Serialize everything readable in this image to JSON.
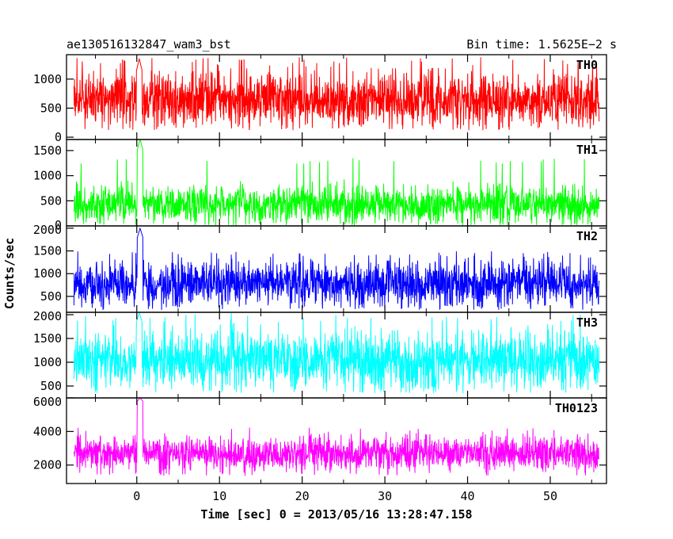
{
  "header": {
    "title": "ae130516132847_wam3_bst",
    "bin_time": "Bin time: 1.5625E−2 s"
  },
  "ylabel": "Counts/sec",
  "xlabel": "Time [sec] 0 = 2013/05/16 13:28:47.158",
  "colors": {
    "TH0": "#ff0000",
    "TH1": "#00ff00",
    "TH2": "#0000ff",
    "TH3": "#00ffff",
    "TH0123": "#ff00ff",
    "axes": "#000000"
  },
  "chart_data": {
    "type": "line",
    "title": "ae130516132847_wam3_bst",
    "subtitle": "Bin time: 1.5625E−2 s",
    "xlabel": "Time [sec] 0 = 2013/05/16 13:28:47.158",
    "ylabel": "Counts/sec",
    "xlim": [
      -8.5,
      56.8
    ],
    "data_x_range": [
      -7.6,
      55.9
    ],
    "bin_time_s": 0.015625,
    "x_ticks": [
      0,
      10,
      20,
      30,
      40,
      50
    ],
    "x_tick_labels": [
      "0",
      "10",
      "20",
      "30",
      "40",
      "50"
    ],
    "grid": false,
    "legend": "none",
    "panels": [
      {
        "name": "TH0",
        "color": "#ff0000",
        "ylim": [
          -40,
          1420
        ],
        "y_ticks": [
          0,
          500,
          1000
        ],
        "y_tick_labels": [
          "0",
          "500",
          "1000"
        ],
        "baseline_mean": 640,
        "baseline_spread": 230,
        "min_typical": 120,
        "max_typical": 1380,
        "burst": {
          "t": 0.3,
          "peak": 1350
        }
      },
      {
        "name": "TH1",
        "color": "#00ff00",
        "ylim": [
          0,
          1720
        ],
        "y_ticks": [
          0,
          500,
          1000,
          1500
        ],
        "y_tick_labels": [
          "0",
          "500",
          "1000",
          "1500"
        ],
        "baseline_mean": 430,
        "baseline_spread": 190,
        "min_typical": 10,
        "max_typical": 1350,
        "burst": {
          "t": 0.4,
          "peak": 1720
        }
      },
      {
        "name": "TH2",
        "color": "#0000ff",
        "ylim": [
          150,
          2050
        ],
        "y_ticks": [
          500,
          1000,
          1500,
          2000
        ],
        "y_tick_labels": [
          "500",
          "1000",
          "1500",
          "2000"
        ],
        "baseline_mean": 780,
        "baseline_spread": 240,
        "min_typical": 200,
        "max_typical": 1500,
        "burst": {
          "t": 0.4,
          "peak": 2000
        }
      },
      {
        "name": "TH3",
        "color": "#00ffff",
        "ylim": [
          250,
          2050
        ],
        "y_ticks": [
          500,
          1000,
          1500,
          2000
        ],
        "y_tick_labels": [
          "500",
          "1000",
          "1500",
          "2000"
        ],
        "baseline_mean": 1050,
        "baseline_spread": 300,
        "min_typical": 350,
        "max_typical": 2050,
        "burst": {
          "t": 0.3,
          "peak": 2050
        }
      },
      {
        "name": "TH0123",
        "color": "#ff00ff",
        "ylim": [
          900,
          6000
        ],
        "y_ticks": [
          2000,
          4000,
          6000
        ],
        "y_tick_labels": [
          "2000",
          "4000",
          "6000"
        ],
        "baseline_mean": 2700,
        "baseline_spread": 520,
        "min_typical": 1350,
        "max_typical": 4300,
        "burst": {
          "t": 0.4,
          "peak": 6000
        }
      }
    ]
  }
}
